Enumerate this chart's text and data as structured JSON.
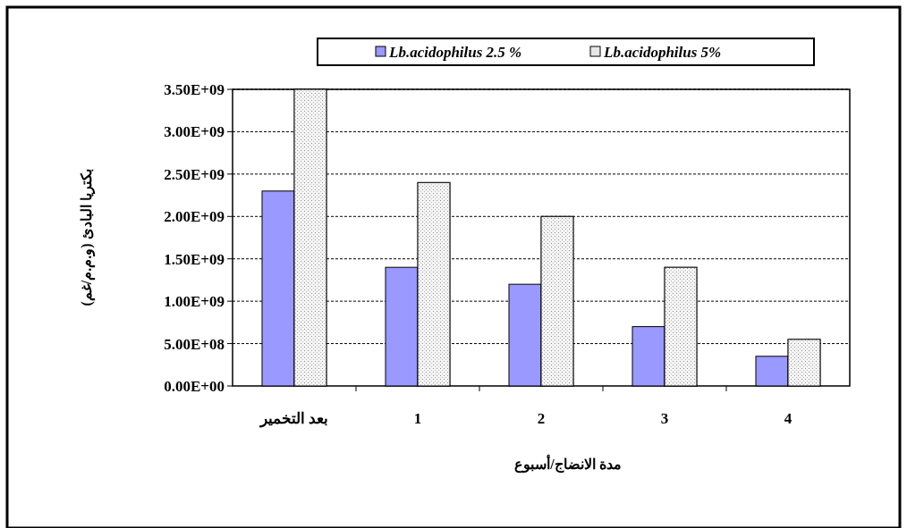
{
  "chart_data": {
    "type": "bar",
    "categories": [
      "بعد التخمير",
      "1",
      "2",
      "3",
      "4"
    ],
    "series": [
      {
        "name": "Lb.acidophilus 2.5 %",
        "color": "#9999ff",
        "values": [
          2300000000,
          1400000000,
          1200000000,
          700000000,
          350000000
        ]
      },
      {
        "name": "Lb.acidophilus 5%",
        "color": "#e6e6e6",
        "values": [
          3500000000,
          2400000000,
          2000000000,
          1400000000,
          550000000
        ]
      }
    ],
    "xlabel": "مدة الانضاج/أسبوع",
    "ylabel": "بكتريا البادئ (و.م.م/غم)",
    "ylim": [
      0,
      3500000000
    ],
    "yticks": [
      {
        "value": 0,
        "label": "0.00E+00"
      },
      {
        "value": 500000000,
        "label": "5.00E+08"
      },
      {
        "value": 1000000000,
        "label": "1.00E+09"
      },
      {
        "value": 1500000000,
        "label": "1.50E+09"
      },
      {
        "value": 2000000000,
        "label": "2.00E+09"
      },
      {
        "value": 2500000000,
        "label": "2.50E+09"
      },
      {
        "value": 3000000000,
        "label": "3.00E+09"
      },
      {
        "value": 3500000000,
        "label": "3.50E+09"
      }
    ],
    "grid": "y",
    "legend": "top"
  }
}
